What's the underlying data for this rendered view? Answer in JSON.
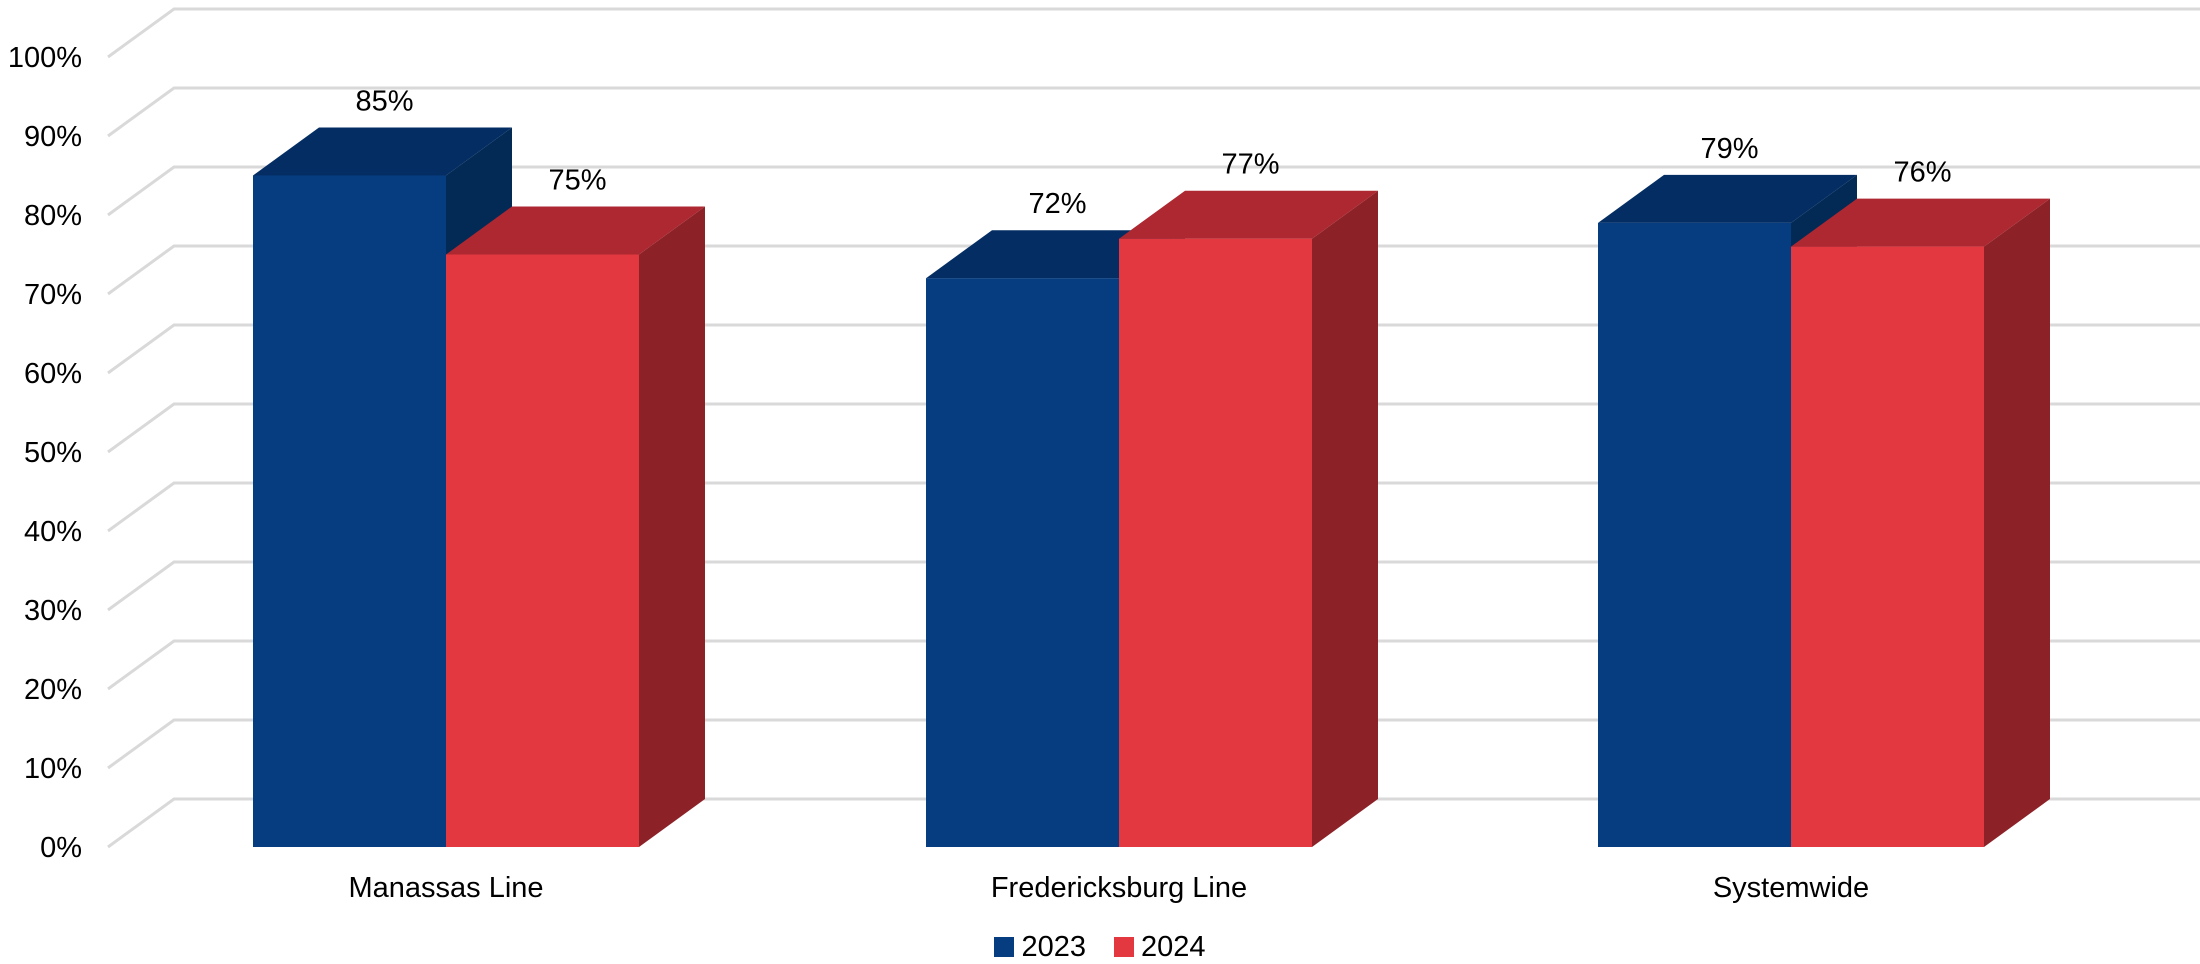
{
  "chart_data": {
    "type": "bar",
    "categories": [
      "Manassas Line",
      "Fredericksburg Line",
      "Systemwide"
    ],
    "series": [
      {
        "name": "2023",
        "values": [
          85,
          72,
          79
        ],
        "labels": [
          "85%",
          "72%",
          "79%"
        ],
        "color": "#063C80",
        "top_color": "#042E63",
        "side_color": "#032A55"
      },
      {
        "name": "2024",
        "values": [
          75,
          77,
          76
        ],
        "labels": [
          "75%",
          "77%",
          "76%"
        ],
        "color": "#E3383F",
        "top_color": "#AD2830",
        "side_color": "#8C2228"
      }
    ],
    "y_ticks": [
      "0%",
      "10%",
      "20%",
      "30%",
      "40%",
      "50%",
      "60%",
      "70%",
      "80%",
      "90%",
      "100%"
    ],
    "ylim": [
      0,
      100
    ],
    "grid": true,
    "legend_position": "bottom",
    "three_d": true
  }
}
